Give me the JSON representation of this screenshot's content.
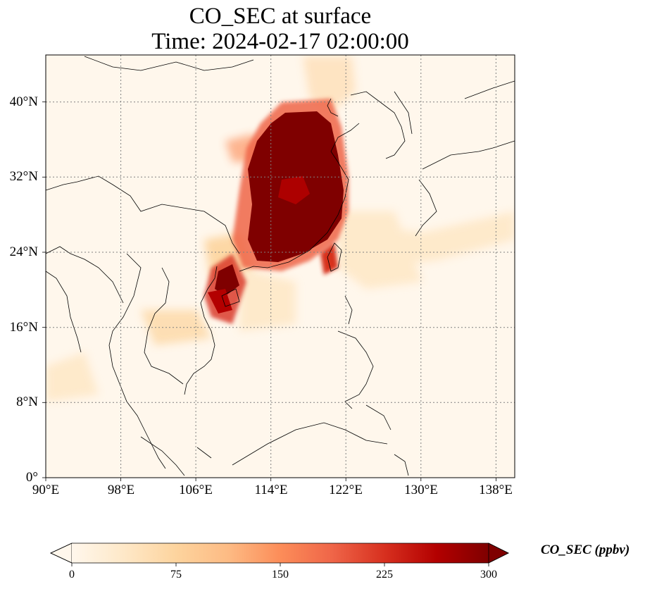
{
  "title": {
    "line1": "CO_SEC at surface",
    "line2": "Time: 2024-02-17 02:00:00"
  },
  "map": {
    "lon_range": [
      90,
      140
    ],
    "lat_range": [
      0,
      45
    ],
    "gridlines": "dotted",
    "colormap": "OrRd",
    "colors": {
      "low": "#fff7ec",
      "mid": "#fdbb84",
      "high": "#7f0000",
      "coast": "#000000",
      "grid": "#808080"
    }
  },
  "axes": {
    "y_ticks": [
      {
        "value": 0,
        "label": "0°"
      },
      {
        "value": 8,
        "label": "8°N"
      },
      {
        "value": 16,
        "label": "16°N"
      },
      {
        "value": 24,
        "label": "24°N"
      },
      {
        "value": 32,
        "label": "32°N"
      },
      {
        "value": 40,
        "label": "40°N"
      }
    ],
    "x_ticks": [
      {
        "value": 90,
        "label": "90°E"
      },
      {
        "value": 98,
        "label": "98°E"
      },
      {
        "value": 106,
        "label": "106°E"
      },
      {
        "value": 114,
        "label": "114°E"
      },
      {
        "value": 122,
        "label": "122°E"
      },
      {
        "value": 130,
        "label": "130°E"
      },
      {
        "value": 138,
        "label": "138°E"
      }
    ]
  },
  "colorbar": {
    "label": "CO_SEC (ppbv)",
    "min": 0,
    "max": 300,
    "extend": "both",
    "ticks": [
      {
        "value": 0,
        "label": "0"
      },
      {
        "value": 75,
        "label": "75"
      },
      {
        "value": 150,
        "label": "150"
      },
      {
        "value": 225,
        "label": "225"
      },
      {
        "value": 300,
        "label": "300"
      }
    ]
  }
}
